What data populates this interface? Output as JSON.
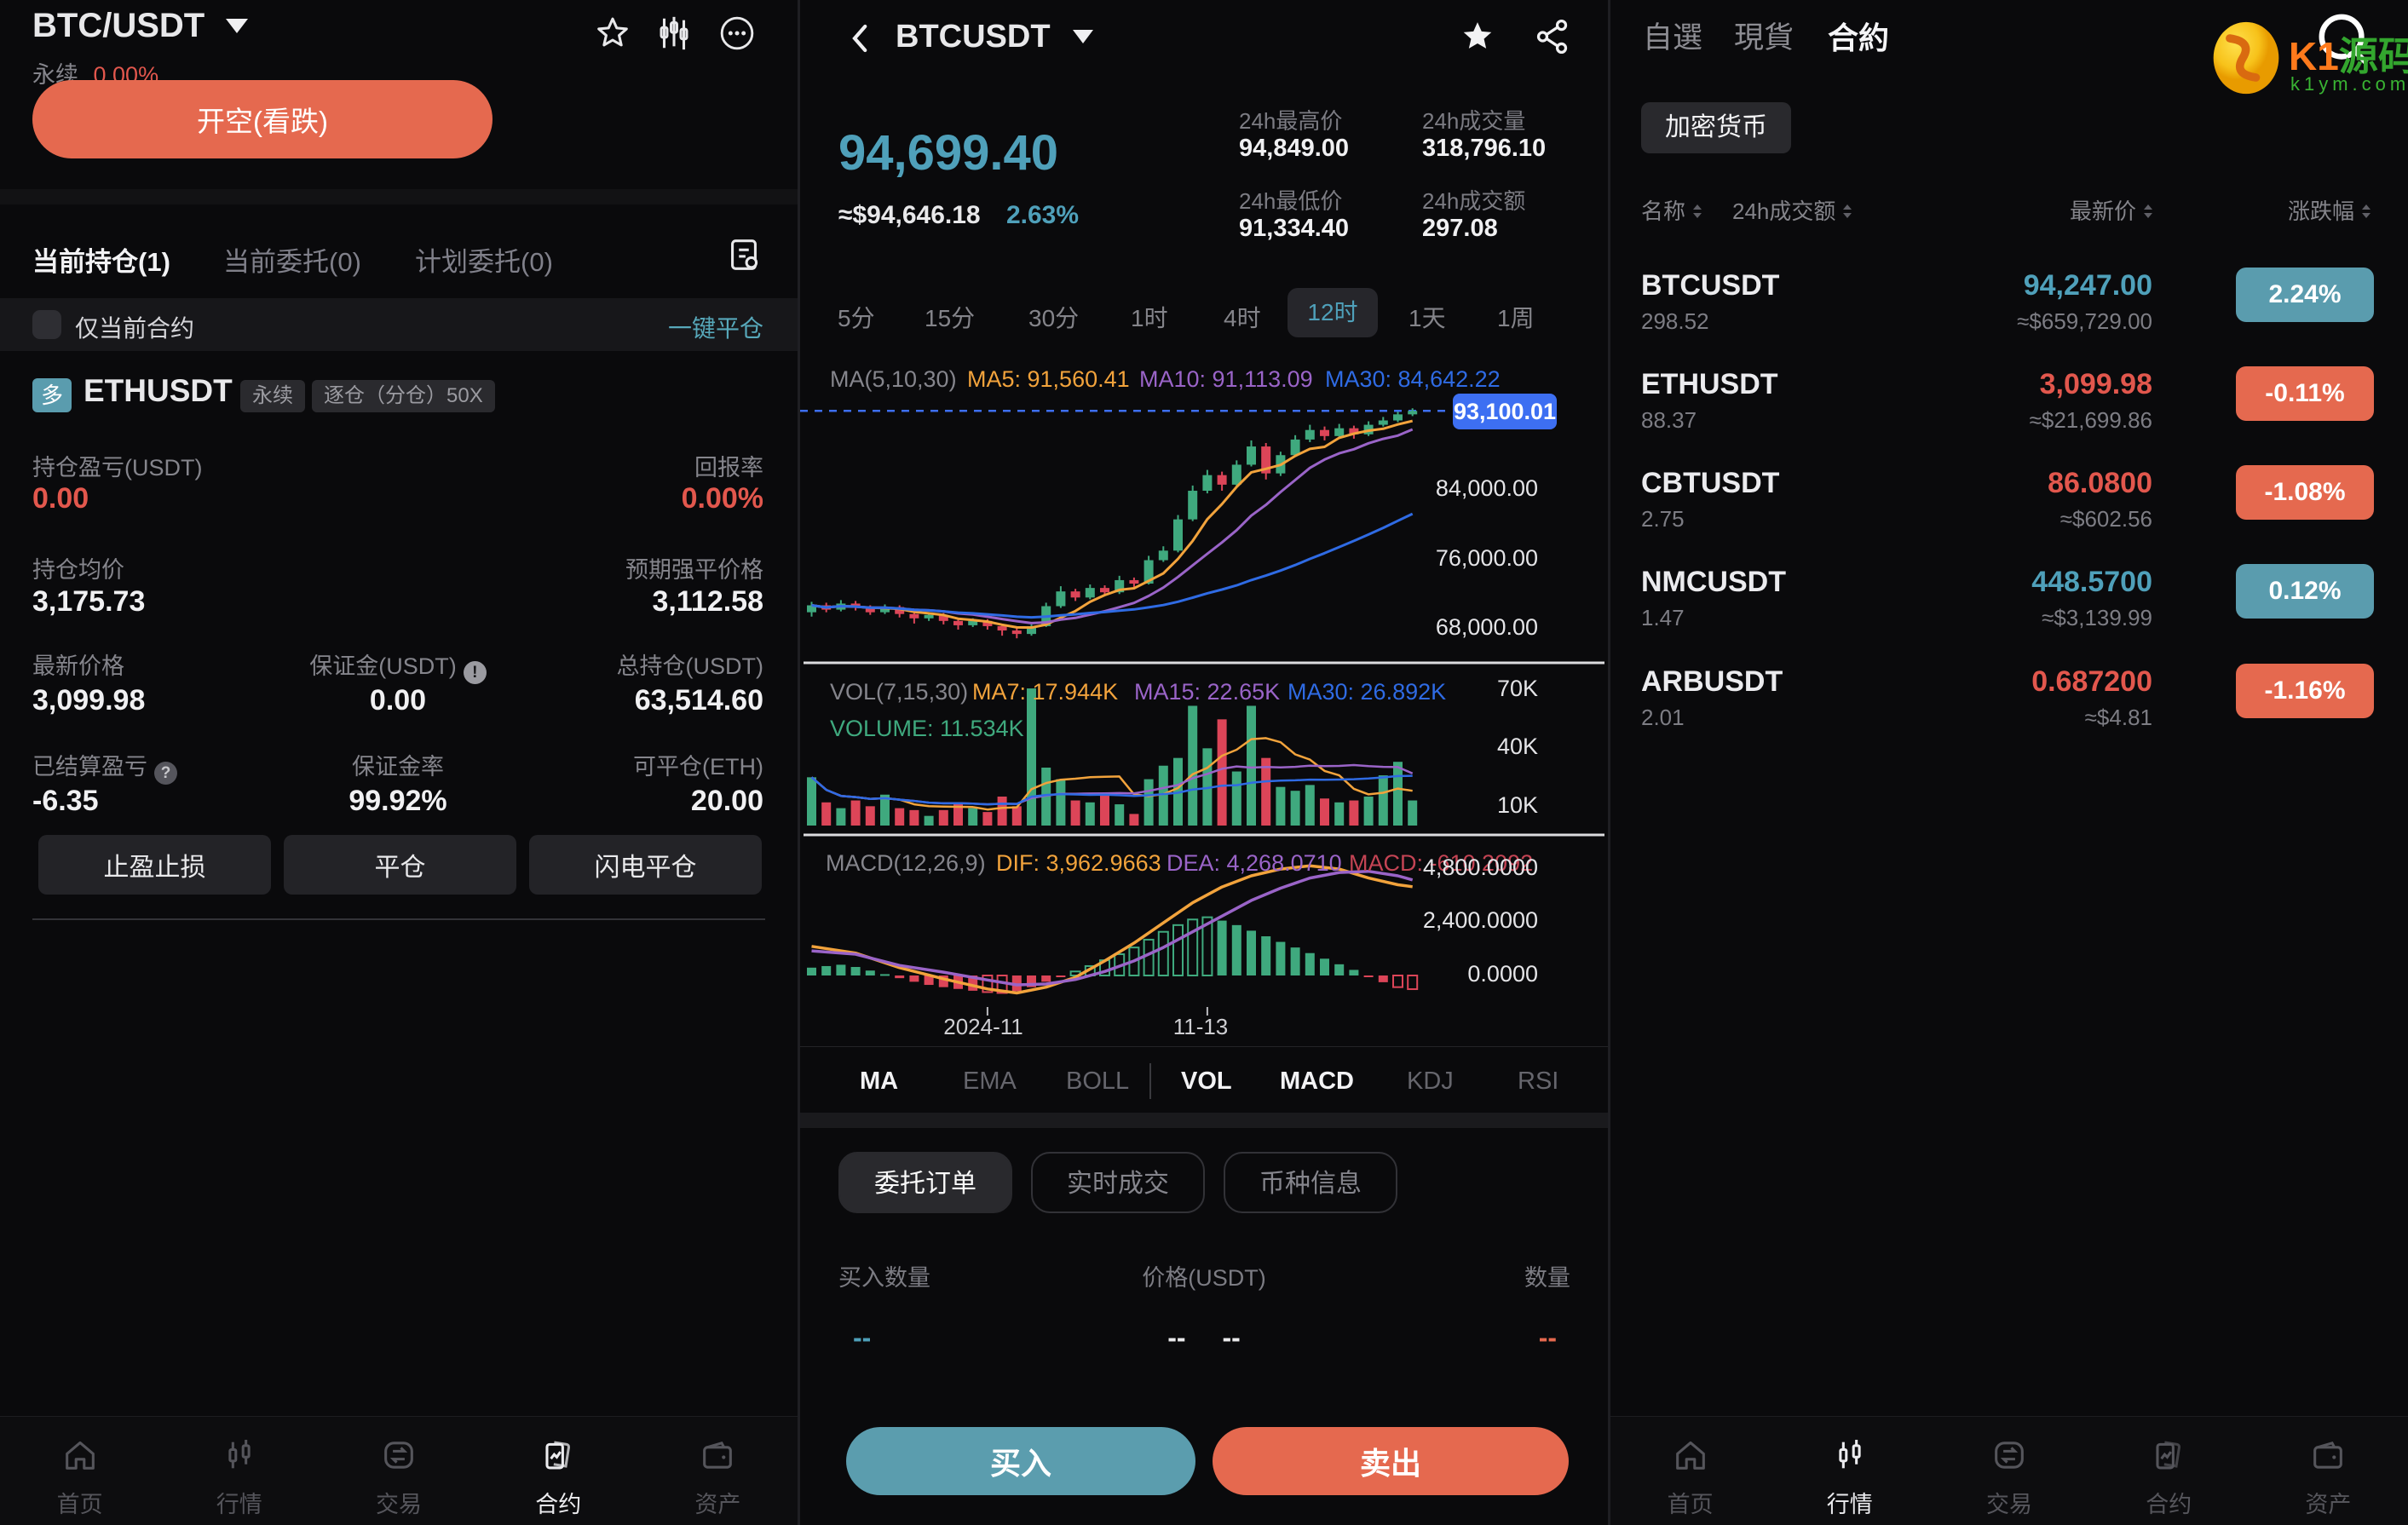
{
  "colors": {
    "up_text": "#4fa0ba",
    "down_text": "#e2574d",
    "up_badge": "#5a9cae",
    "down_badge": "#e5694f",
    "buy_btn": "#5b9dae",
    "sell_btn": "#e5694f",
    "candle_up": "#3fa97e",
    "candle_down": "#dc4558",
    "ma5": "#f2a33c",
    "ma10": "#9a64c8",
    "ma30": "#2f6be4",
    "accent_blue": "#3d6ff2",
    "link_teal": "#57a8ba"
  },
  "left": {
    "pair": "BTC/USDT",
    "perp_label": "永续",
    "funding": "0.00%",
    "open_short_btn": "开空(看跌)",
    "tabs": [
      {
        "label": "当前持仓(1)",
        "active": true
      },
      {
        "label": "当前委托(0)",
        "active": false
      },
      {
        "label": "计划委托(0)",
        "active": false
      }
    ],
    "only_current_label": "仅当前合约",
    "close_all_link": "一键平仓",
    "position": {
      "side_badge": "多",
      "symbol": "ETHUSDT",
      "tag_perp": "永续",
      "tag_margin": "逐仓（分仓）50X",
      "rows": [
        [
          {
            "label": "持仓盈亏(USDT)",
            "value": "0.00",
            "align": "left",
            "tone": "red"
          },
          {
            "label": "回报率",
            "value": "0.00%",
            "align": "right",
            "tone": "red"
          }
        ],
        [
          {
            "label": "持仓均价",
            "value": "3,175.73",
            "align": "left"
          },
          {
            "label": "预期强平价格",
            "value": "3,112.58",
            "align": "right"
          }
        ],
        [
          {
            "label": "最新价格",
            "value": "3,099.98",
            "align": "left"
          },
          {
            "label": "保证金(USDT)",
            "value": "0.00",
            "align": "center",
            "icon": "info"
          },
          {
            "label": "总持仓(USDT)",
            "value": "63,514.60",
            "align": "right"
          }
        ],
        [
          {
            "label": "已结算盈亏",
            "value": "-6.35",
            "align": "left",
            "icon": "question"
          },
          {
            "label": "保证金率",
            "value": "99.92%",
            "align": "center"
          },
          {
            "label": "可平仓(ETH)",
            "value": "20.00",
            "align": "right"
          }
        ]
      ],
      "buttons": [
        "止盈止损",
        "平仓",
        "闪电平仓"
      ]
    },
    "nav": {
      "items": [
        "首页",
        "行情",
        "交易",
        "合约",
        "资产"
      ],
      "active": "合约"
    }
  },
  "middle": {
    "symbol": "BTCUSDT",
    "price": "94,699.40",
    "approx": "≈$94,646.18",
    "change": "2.63%",
    "stats": [
      {
        "label": "24h最高价",
        "value": "94,849.00"
      },
      {
        "label": "24h成交量",
        "value": "318,796.10"
      },
      {
        "label": "24h最低价",
        "value": "91,334.40"
      },
      {
        "label": "24h成交额",
        "value": "297.08"
      }
    ],
    "timeframes": [
      "5分",
      "15分",
      "30分",
      "1时",
      "4时",
      "12时",
      "1天",
      "1周"
    ],
    "active_timeframe": "12时",
    "ma_header": {
      "title": "MA(5,10,30)",
      "ma5": "MA5: 91,560.41",
      "ma10": "MA10: 91,113.09",
      "ma30": "MA30: 84,642.22"
    },
    "price_tag": "93,100.01",
    "price_axis_labels": [
      "84,000.00",
      "76,000.00",
      "68,000.00"
    ],
    "vol_header": {
      "title": "VOL(7,15,30)",
      "ma7": "MA7: 17.944K",
      "ma15": "MA15: 22.65K",
      "ma30": "MA30: 26.892K",
      "volume": "VOLUME: 11.534K"
    },
    "vol_axis_labels": [
      "70K",
      "40K",
      "10K"
    ],
    "macd_header": {
      "title": "MACD(12,26,9)",
      "dif": "DIF: 3,962.9663",
      "dea": "DEA: 4,268.0710",
      "macd": "MACD: -610.2092"
    },
    "macd_axis_labels": [
      "4,800.0000",
      "2,400.0000",
      "0.0000"
    ],
    "x_labels": [
      "2024-11",
      "11-13"
    ],
    "indicator_tabs": [
      "MA",
      "EMA",
      "BOLL",
      "VOL",
      "MACD",
      "KDJ",
      "RSI"
    ],
    "indicator_active": [
      "MA",
      "VOL",
      "MACD"
    ],
    "order_tabs": [
      "委托订单",
      "实时成交",
      "币种信息"
    ],
    "order_active": "委托订单",
    "table_headers": [
      "买入数量",
      "价格(USDT)",
      "数量"
    ],
    "dash_row": {
      "buy": "--",
      "price_a": "--",
      "price_b": "--",
      "qty": "--"
    },
    "buy_btn": "买入",
    "sell_btn": "卖出",
    "chart_data": {
      "type": "candlestick+volume+macd",
      "last_price": 93100.01,
      "price_axis": [
        84000,
        76000,
        68000
      ],
      "vol_axis_k": [
        70,
        40,
        10
      ],
      "macd_axis": [
        4800,
        2400,
        0
      ],
      "candles": [
        [
          69900,
          70700,
          69400,
          71100
        ],
        [
          70700,
          70200,
          69900,
          71000
        ],
        [
          70200,
          70900,
          70000,
          71300
        ],
        [
          70900,
          70400,
          70100,
          71200
        ],
        [
          70400,
          69900,
          69600,
          70700
        ],
        [
          69900,
          70500,
          69700,
          70800
        ],
        [
          70500,
          69700,
          69300,
          70700
        ],
        [
          69700,
          69200,
          68600,
          69900
        ],
        [
          69200,
          69600,
          68900,
          69900
        ],
        [
          69600,
          68900,
          68500,
          69800
        ],
        [
          68900,
          68400,
          67900,
          69100
        ],
        [
          68400,
          68900,
          68200,
          69200
        ],
        [
          68900,
          68300,
          67900,
          69100
        ],
        [
          68300,
          67800,
          67200,
          68500
        ],
        [
          67800,
          67400,
          66900,
          68100
        ],
        [
          67400,
          68300,
          67200,
          68500
        ],
        [
          68300,
          70600,
          68200,
          71000
        ],
        [
          70600,
          72300,
          70400,
          72900
        ],
        [
          72300,
          71600,
          71200,
          72600
        ],
        [
          71600,
          72700,
          71400,
          73100
        ],
        [
          72700,
          72200,
          71900,
          73000
        ],
        [
          72200,
          73600,
          72000,
          74100
        ],
        [
          73600,
          73200,
          72800,
          73900
        ],
        [
          73200,
          75900,
          73100,
          76400
        ],
        [
          75900,
          77000,
          75700,
          77500
        ],
        [
          77000,
          80600,
          76800,
          81100
        ],
        [
          80600,
          83900,
          80400,
          84500
        ],
        [
          83900,
          85700,
          83600,
          86300
        ],
        [
          85700,
          84600,
          83900,
          86100
        ],
        [
          84600,
          86900,
          84300,
          87400
        ],
        [
          86900,
          89000,
          86700,
          89700
        ],
        [
          89000,
          85900,
          85200,
          89400
        ],
        [
          85900,
          88000,
          85600,
          88400
        ],
        [
          88000,
          89800,
          87800,
          90300
        ],
        [
          89800,
          90900,
          89500,
          91500
        ],
        [
          90900,
          90200,
          89700,
          91300
        ],
        [
          90200,
          91100,
          90000,
          91600
        ],
        [
          91100,
          90400,
          89900,
          91400
        ],
        [
          90400,
          91500,
          90200,
          91900
        ],
        [
          91500,
          92000,
          91300,
          92400
        ],
        [
          92000,
          92700,
          91800,
          93000
        ],
        [
          92700,
          93100,
          92500,
          93400
        ]
      ],
      "volumes_k": [
        25,
        12,
        9,
        13,
        10,
        16,
        9,
        8,
        5,
        8,
        12,
        9,
        7,
        15,
        10,
        71,
        30,
        24,
        13,
        12,
        17,
        11,
        6,
        24,
        31,
        35,
        62,
        40,
        55,
        28,
        62,
        35,
        20,
        18,
        21,
        14,
        12,
        13,
        15,
        26,
        33,
        13
      ],
      "macd_hist": [
        350,
        420,
        480,
        380,
        220,
        60,
        -120,
        -280,
        -420,
        -520,
        -600,
        -680,
        -740,
        -780,
        -700,
        -520,
        -280,
        -60,
        180,
        420,
        680,
        950,
        1250,
        1600,
        1950,
        2250,
        2500,
        2600,
        2450,
        2250,
        2000,
        1750,
        1500,
        1250,
        1000,
        750,
        500,
        250,
        -50,
        -300,
        -520,
        -610
      ],
      "macd_hollow": [
        12,
        13,
        18,
        19,
        20,
        21,
        22,
        23,
        24,
        25,
        26,
        27,
        40,
        41
      ],
      "dif": [
        [
          0,
          1300
        ],
        [
          3,
          1000
        ],
        [
          6,
          350
        ],
        [
          9,
          -150
        ],
        [
          12,
          -600
        ],
        [
          14,
          -780
        ],
        [
          16,
          -520
        ],
        [
          18,
          -80
        ],
        [
          20,
          650
        ],
        [
          22,
          1450
        ],
        [
          24,
          2350
        ],
        [
          26,
          3250
        ],
        [
          28,
          3950
        ],
        [
          30,
          4450
        ],
        [
          32,
          4750
        ],
        [
          34,
          4900
        ],
        [
          36,
          4750
        ],
        [
          38,
          4350
        ],
        [
          40,
          4050
        ],
        [
          41,
          3963
        ]
      ],
      "dea": [
        [
          0,
          1100
        ],
        [
          3,
          950
        ],
        [
          6,
          450
        ],
        [
          9,
          150
        ],
        [
          12,
          -200
        ],
        [
          14,
          -420
        ],
        [
          16,
          -380
        ],
        [
          18,
          -180
        ],
        [
          20,
          180
        ],
        [
          22,
          650
        ],
        [
          24,
          1250
        ],
        [
          26,
          1950
        ],
        [
          28,
          2650
        ],
        [
          30,
          3350
        ],
        [
          32,
          3900
        ],
        [
          34,
          4350
        ],
        [
          36,
          4600
        ],
        [
          38,
          4650
        ],
        [
          40,
          4450
        ],
        [
          41,
          4268
        ]
      ],
      "x_tick_indices": [
        12,
        27
      ]
    }
  },
  "right": {
    "tabs": [
      "自選",
      "現貨",
      "合約"
    ],
    "active_tab": "合約",
    "logo": {
      "k1": "K1",
      "yuanma": "源码",
      "domain": "k1ym.com"
    },
    "category_pill": "加密货币",
    "col_headers": [
      "名称",
      "24h成交额",
      "最新价",
      "涨跌幅"
    ],
    "rows": [
      {
        "symbol": "BTCUSDT",
        "vol": "298.52",
        "price": "94,247.00",
        "approx": "≈$659,729.00",
        "change": "2.24%",
        "dir": "up"
      },
      {
        "symbol": "ETHUSDT",
        "vol": "88.37",
        "price": "3,099.98",
        "approx": "≈$21,699.86",
        "change": "-0.11%",
        "dir": "down"
      },
      {
        "symbol": "CBTUSDT",
        "vol": "2.75",
        "price": "86.0800",
        "approx": "≈$602.56",
        "change": "-1.08%",
        "dir": "down"
      },
      {
        "symbol": "NMCUSDT",
        "vol": "1.47",
        "price": "448.5700",
        "approx": "≈$3,139.99",
        "change": "0.12%",
        "dir": "up"
      },
      {
        "symbol": "ARBUSDT",
        "vol": "2.01",
        "price": "0.687200",
        "approx": "≈$4.81",
        "change": "-1.16%",
        "dir": "down"
      }
    ],
    "nav": {
      "items": [
        "首页",
        "行情",
        "交易",
        "合约",
        "资产"
      ],
      "active": "行情"
    }
  }
}
